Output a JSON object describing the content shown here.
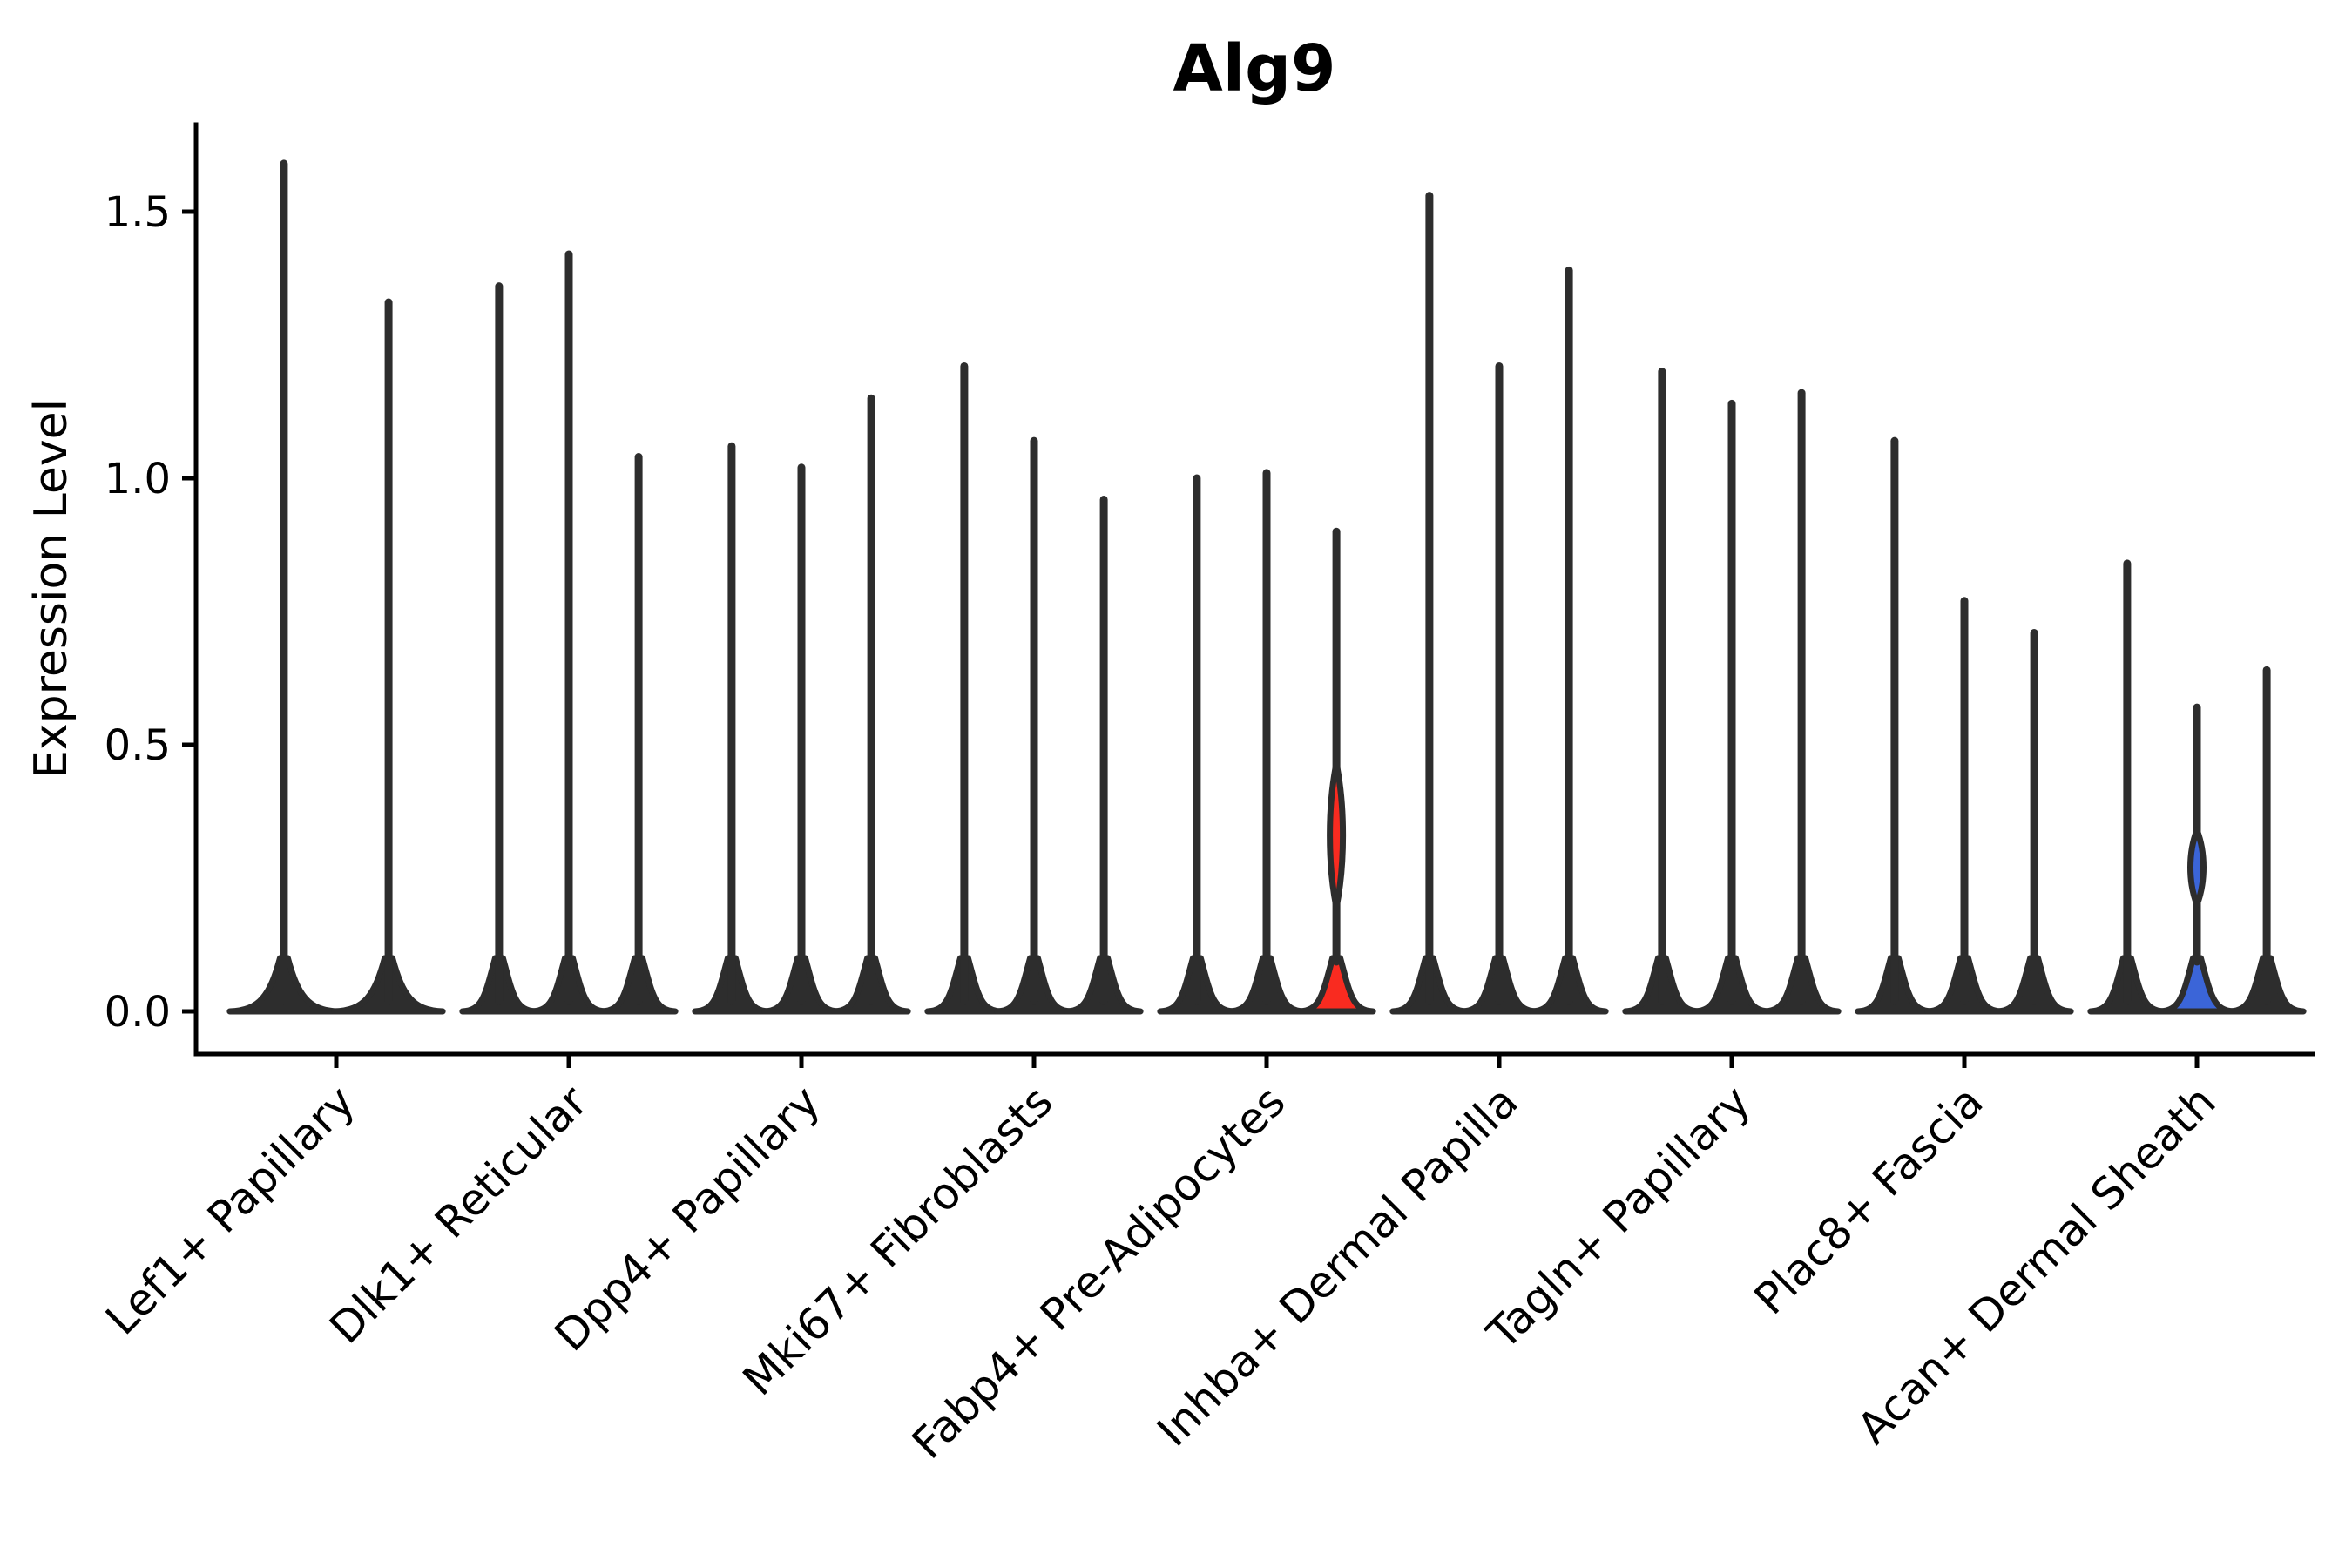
{
  "figure": {
    "title": "Alg9",
    "background": "#ffffff"
  },
  "chart_data": {
    "type": "violin",
    "title": "Alg9",
    "xlabel": "",
    "ylabel": "Expression Level",
    "ylim": [
      -0.08,
      1.66
    ],
    "grid": false,
    "legend": null,
    "ytick_values": [
      0.0,
      0.5,
      1.0,
      1.5
    ],
    "ytick_labels": [
      "0.0",
      "0.5",
      "1.0",
      "1.5"
    ],
    "categories": [
      "Lef1+ Papillary",
      "Dlk1+ Reticular",
      "Dpp4+ Papillary",
      "Mki67+ Fibroblasts",
      "Fabp4+ Pre-Adipocytes",
      "Inhba+ Dermal Papilla",
      "Tagln+ Papillary",
      "Plac8+ Fascia",
      "Acan+ Dermal Sheath"
    ],
    "description": "Violin plot of Alg9 expression; each cell-type group contains narrow spike violins with flattened mass at 0. One violin in Fabp4+ Pre-Adipocytes is highlighted red and one in Acan+ Dermal Sheath is highlighted blue.",
    "groups": [
      {
        "category": "Lef1+ Papillary",
        "violins": [
          {
            "peak": 1.59,
            "color": "dark"
          },
          {
            "peak": 1.33,
            "color": "dark"
          }
        ]
      },
      {
        "category": "Dlk1+ Reticular",
        "violins": [
          {
            "peak": 1.36,
            "color": "dark"
          },
          {
            "peak": 1.42,
            "color": "dark"
          },
          {
            "peak": 1.04,
            "color": "dark"
          }
        ]
      },
      {
        "category": "Dpp4+ Papillary",
        "violins": [
          {
            "peak": 1.06,
            "color": "dark"
          },
          {
            "peak": 1.02,
            "color": "dark"
          },
          {
            "peak": 1.15,
            "color": "dark"
          }
        ]
      },
      {
        "category": "Mki67+ Fibroblasts",
        "violins": [
          {
            "peak": 1.21,
            "color": "dark"
          },
          {
            "peak": 1.07,
            "color": "dark"
          },
          {
            "peak": 0.96,
            "color": "dark"
          }
        ]
      },
      {
        "category": "Fabp4+ Pre-Adipocytes",
        "violins": [
          {
            "peak": 1.0,
            "color": "dark"
          },
          {
            "peak": 1.01,
            "color": "dark"
          },
          {
            "peak": 0.9,
            "color": "red",
            "bulge": {
              "center": 0.33,
              "half_span": 0.135
            }
          }
        ]
      },
      {
        "category": "Inhba+ Dermal Papilla",
        "violins": [
          {
            "peak": 1.53,
            "color": "dark"
          },
          {
            "peak": 1.21,
            "color": "dark"
          },
          {
            "peak": 1.39,
            "color": "dark"
          }
        ]
      },
      {
        "category": "Tagln+ Papillary",
        "violins": [
          {
            "peak": 1.2,
            "color": "dark"
          },
          {
            "peak": 1.14,
            "color": "dark"
          },
          {
            "peak": 1.16,
            "color": "dark"
          }
        ]
      },
      {
        "category": "Plac8+ Fascia",
        "violins": [
          {
            "peak": 1.07,
            "color": "dark"
          },
          {
            "peak": 0.77,
            "color": "dark"
          },
          {
            "peak": 0.71,
            "color": "dark"
          }
        ]
      },
      {
        "category": "Acan+ Dermal Sheath",
        "violins": [
          {
            "peak": 0.84,
            "color": "dark"
          },
          {
            "peak": 0.57,
            "color": "blue",
            "bulge": {
              "center": 0.27,
              "half_span": 0.07
            }
          },
          {
            "peak": 0.64,
            "color": "dark"
          }
        ]
      }
    ],
    "colors": {
      "violin_outline": "#2d2d2d",
      "violin_fill_dark": "#2d2d2d",
      "highlight_red": "#f92b20",
      "highlight_blue": "#3b65d8",
      "axis": "#000000",
      "background": "#ffffff"
    }
  }
}
